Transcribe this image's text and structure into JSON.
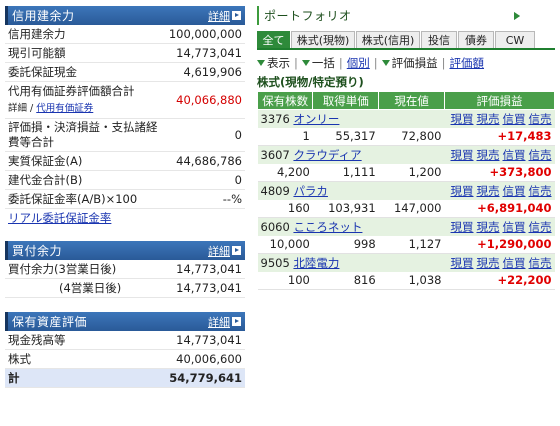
{
  "margin_panel": {
    "title": "信用建余力",
    "detail": "詳細",
    "rows": [
      {
        "label": "信用建余力",
        "value": "100,000,000"
      },
      {
        "label": "現引可能額",
        "value": "14,773,041"
      },
      {
        "label": "委託保証現金",
        "value": "4,619,906"
      },
      {
        "label": "代用有価証券評価額合計",
        "value": "40,066,880"
      },
      {
        "label": "評価損・決済損益・支払諸経費等合計",
        "value": "0"
      },
      {
        "label": "実質保証金(A)",
        "value": "44,686,786"
      },
      {
        "label": "建代金合計(B)",
        "value": "0"
      },
      {
        "label": "委託保証金率(A/B)×100",
        "value": "--%"
      }
    ],
    "sub_detail_prefix": "詳細",
    "sub_detail_sep": " / ",
    "sub_detail_link": "代用有価証券",
    "realtime_link": "リアル委託保証金率"
  },
  "buying_panel": {
    "title": "買付余力",
    "detail": "詳細",
    "rows": [
      {
        "label": "買付余力(3営業日後)",
        "value": "14,773,041"
      },
      {
        "label": "(4営業日後)",
        "value": "14,773,041"
      }
    ]
  },
  "assets_panel": {
    "title": "保有資産評価",
    "detail": "詳細",
    "rows": [
      {
        "label": "現金残高等",
        "value": "14,773,041"
      },
      {
        "label": "株式",
        "value": "40,006,600"
      }
    ],
    "total": {
      "label": "計",
      "value": "54,779,641"
    }
  },
  "portfolio": {
    "title": "ポートフォリオ",
    "tabs": [
      "全て",
      "株式(現物)",
      "株式(信用)",
      "投信",
      "債券",
      "CW"
    ],
    "toolbar": {
      "display": "表示",
      "bulk": "一括",
      "individual": "個別",
      "eval_pl": "評価損益",
      "eval_amount": "評価額"
    },
    "section_title": "株式(現物/特定預り)",
    "headers": [
      "保有株数",
      "取得単価",
      "現在値",
      "評価損益"
    ],
    "actions": [
      "現買",
      "現売",
      "信買",
      "信売"
    ],
    "holdings": [
      {
        "code": "3376",
        "name": "オンリー",
        "shares": "1",
        "cost": "55,317",
        "price": "72,800",
        "pl": "+17,483"
      },
      {
        "code": "3607",
        "name": "クラウディア",
        "shares": "4,200",
        "cost": "1,111",
        "price": "1,200",
        "pl": "+373,800"
      },
      {
        "code": "4809",
        "name": "パラカ",
        "shares": "160",
        "cost": "103,931",
        "price": "147,000",
        "pl": "+6,891,040"
      },
      {
        "code": "6060",
        "name": "こころネット",
        "shares": "10,000",
        "cost": "998",
        "price": "1,127",
        "pl": "+1,290,000"
      },
      {
        "code": "9505",
        "name": "北陸電力",
        "shares": "100",
        "cost": "816",
        "price": "1,038",
        "pl": "+22,200"
      }
    ]
  }
}
